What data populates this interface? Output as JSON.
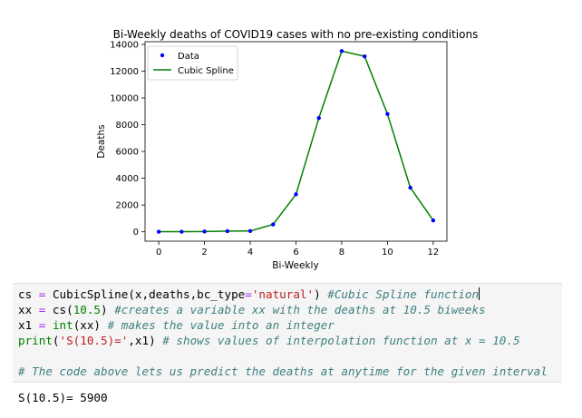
{
  "chart_data": {
    "type": "line",
    "title": "Bi-Weekly deaths of COVID19 cases with no pre-existing conditions",
    "xlabel": "Bi-Weekly",
    "ylabel": "Deaths",
    "xlim": [
      -0.6,
      12.6
    ],
    "ylim": [
      -700,
      14200
    ],
    "x_ticks": [
      0,
      2,
      4,
      6,
      8,
      10,
      12
    ],
    "y_ticks": [
      0,
      2000,
      4000,
      6000,
      8000,
      10000,
      12000,
      14000
    ],
    "grid": false,
    "legend_position": "upper left",
    "series": [
      {
        "name": "Data",
        "style": "points",
        "color": "#0000ff",
        "x": [
          0,
          1,
          2,
          3,
          4,
          5,
          6,
          7,
          8,
          9,
          10,
          11,
          12
        ],
        "y": [
          10,
          10,
          20,
          50,
          60,
          550,
          2800,
          8500,
          13500,
          13100,
          8800,
          3300,
          850
        ]
      },
      {
        "name": "Cubic Spline",
        "style": "line",
        "color": "#008000",
        "x": [
          0,
          1,
          2,
          3,
          4,
          5,
          6,
          7,
          8,
          9,
          10,
          11,
          12
        ],
        "y": [
          10,
          10,
          20,
          50,
          60,
          550,
          2800,
          8500,
          13500,
          13100,
          8800,
          3300,
          850
        ]
      }
    ]
  },
  "code_cell": {
    "lines": [
      [
        {
          "t": "cs",
          "c": "name"
        },
        {
          "t": " ",
          "c": "name"
        },
        {
          "t": "=",
          "c": "op"
        },
        {
          "t": " CubicSpline(x,deaths,bc_type",
          "c": "name"
        },
        {
          "t": "=",
          "c": "op"
        },
        {
          "t": "'natural'",
          "c": "str"
        },
        {
          "t": ") ",
          "c": "name"
        },
        {
          "t": "#Cubic Spline function",
          "c": "comment"
        }
      ],
      [
        {
          "t": "xx ",
          "c": "name"
        },
        {
          "t": "=",
          "c": "op"
        },
        {
          "t": " cs(",
          "c": "name"
        },
        {
          "t": "10.5",
          "c": "num"
        },
        {
          "t": ") ",
          "c": "name"
        },
        {
          "t": "#creates a variable xx with the deaths at 10.5 biweeks",
          "c": "comment"
        }
      ],
      [
        {
          "t": "x1 ",
          "c": "name"
        },
        {
          "t": "=",
          "c": "op"
        },
        {
          "t": " ",
          "c": "name"
        },
        {
          "t": "int",
          "c": "builtin"
        },
        {
          "t": "(xx) ",
          "c": "name"
        },
        {
          "t": "# makes the value into an integer",
          "c": "comment"
        }
      ],
      [
        {
          "t": "print",
          "c": "builtin"
        },
        {
          "t": "(",
          "c": "name"
        },
        {
          "t": "'S(10.5)='",
          "c": "str"
        },
        {
          "t": ",x1) ",
          "c": "name"
        },
        {
          "t": "# shows values of interpolation function at x = 10.5",
          "c": "comment"
        }
      ],
      [],
      [
        {
          "t": "# The code above lets us predict the deaths at anytime for the given interval",
          "c": "comment"
        }
      ]
    ]
  },
  "output": {
    "text": "S(10.5)= 5900"
  }
}
